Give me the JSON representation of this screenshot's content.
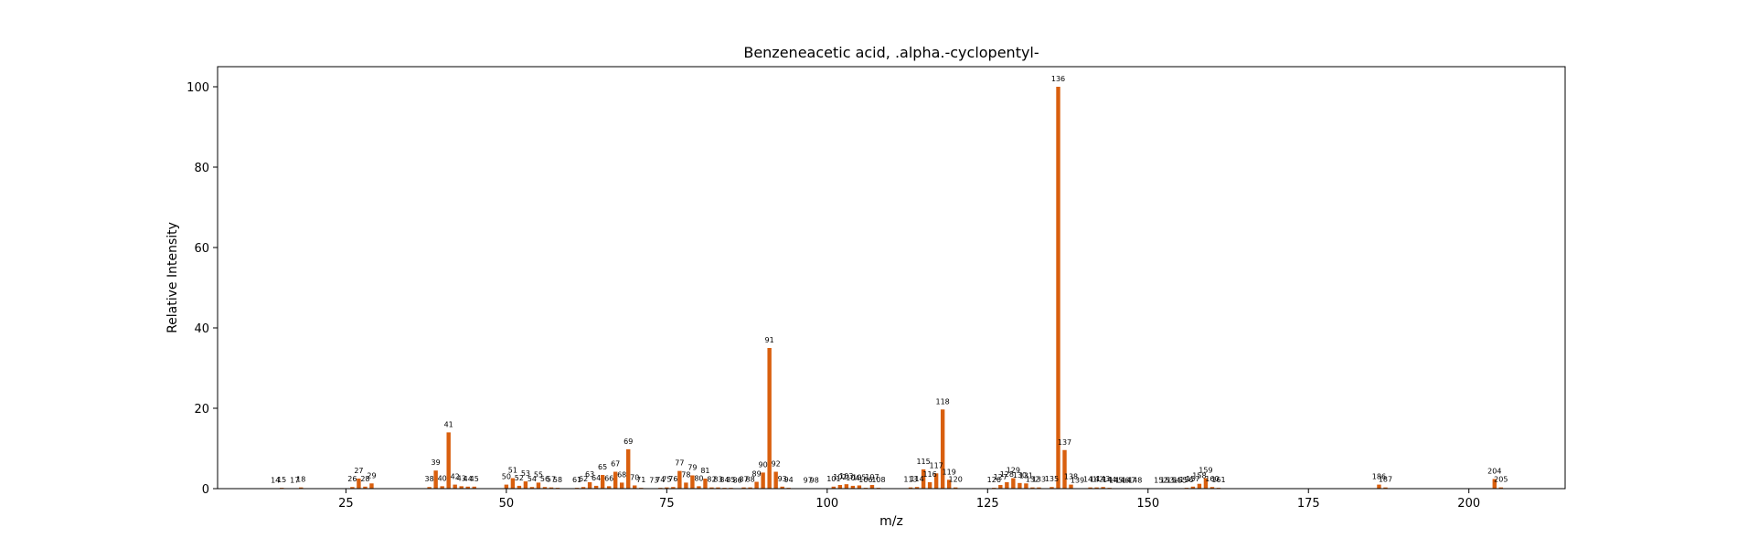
{
  "chart_data": {
    "type": "bar",
    "title": "Benzeneacetic acid, .alpha.-cyclopentyl-",
    "xlabel": "m/z",
    "ylabel": "Relative Intensity",
    "xlim": [
      5,
      215
    ],
    "ylim": [
      0,
      105
    ],
    "xticks": [
      25,
      50,
      75,
      100,
      125,
      150,
      175,
      200
    ],
    "yticks": [
      0,
      20,
      40,
      60,
      80,
      100
    ],
    "bar_color": "#d95f0e",
    "grid": false,
    "peaks": [
      {
        "mz": 14,
        "intensity": 0.1
      },
      {
        "mz": 15,
        "intensity": 0.2
      },
      {
        "mz": 17,
        "intensity": 0.1
      },
      {
        "mz": 18,
        "intensity": 0.3
      },
      {
        "mz": 26,
        "intensity": 0.4
      },
      {
        "mz": 27,
        "intensity": 2.5
      },
      {
        "mz": 28,
        "intensity": 0.5
      },
      {
        "mz": 29,
        "intensity": 1.3
      },
      {
        "mz": 38,
        "intensity": 0.4
      },
      {
        "mz": 39,
        "intensity": 4.5
      },
      {
        "mz": 40,
        "intensity": 0.6
      },
      {
        "mz": 41,
        "intensity": 14
      },
      {
        "mz": 42,
        "intensity": 1.0
      },
      {
        "mz": 43,
        "intensity": 0.6
      },
      {
        "mz": 44,
        "intensity": 0.5
      },
      {
        "mz": 45,
        "intensity": 0.5
      },
      {
        "mz": 50,
        "intensity": 1.0
      },
      {
        "mz": 51,
        "intensity": 2.6
      },
      {
        "mz": 52,
        "intensity": 0.7
      },
      {
        "mz": 53,
        "intensity": 1.8
      },
      {
        "mz": 54,
        "intensity": 0.4
      },
      {
        "mz": 55,
        "intensity": 1.5
      },
      {
        "mz": 56,
        "intensity": 0.4
      },
      {
        "mz": 57,
        "intensity": 0.3
      },
      {
        "mz": 58,
        "intensity": 0.2
      },
      {
        "mz": 61,
        "intensity": 0.2
      },
      {
        "mz": 62,
        "intensity": 0.4
      },
      {
        "mz": 63,
        "intensity": 1.6
      },
      {
        "mz": 64,
        "intensity": 0.7
      },
      {
        "mz": 65,
        "intensity": 3.4
      },
      {
        "mz": 66,
        "intensity": 0.6
      },
      {
        "mz": 67,
        "intensity": 4.2
      },
      {
        "mz": 68,
        "intensity": 1.5
      },
      {
        "mz": 69,
        "intensity": 9.8
      },
      {
        "mz": 70,
        "intensity": 0.8
      },
      {
        "mz": 71,
        "intensity": 0.2
      },
      {
        "mz": 73,
        "intensity": 0.1
      },
      {
        "mz": 74,
        "intensity": 0.2
      },
      {
        "mz": 75,
        "intensity": 0.3
      },
      {
        "mz": 76,
        "intensity": 0.4
      },
      {
        "mz": 77,
        "intensity": 4.4
      },
      {
        "mz": 78,
        "intensity": 1.5
      },
      {
        "mz": 79,
        "intensity": 3.3
      },
      {
        "mz": 80,
        "intensity": 0.6
      },
      {
        "mz": 81,
        "intensity": 2.5
      },
      {
        "mz": 82,
        "intensity": 0.3
      },
      {
        "mz": 83,
        "intensity": 0.3
      },
      {
        "mz": 84,
        "intensity": 0.2
      },
      {
        "mz": 85,
        "intensity": 0.2
      },
      {
        "mz": 86,
        "intensity": 0.1
      },
      {
        "mz": 87,
        "intensity": 0.3
      },
      {
        "mz": 88,
        "intensity": 0.3
      },
      {
        "mz": 89,
        "intensity": 1.7
      },
      {
        "mz": 90,
        "intensity": 4.0
      },
      {
        "mz": 91,
        "intensity": 35
      },
      {
        "mz": 92,
        "intensity": 4.2
      },
      {
        "mz": 93,
        "intensity": 0.5
      },
      {
        "mz": 94,
        "intensity": 0.2
      },
      {
        "mz": 97,
        "intensity": 0.1
      },
      {
        "mz": 98,
        "intensity": 0.1
      },
      {
        "mz": 101,
        "intensity": 0.5
      },
      {
        "mz": 102,
        "intensity": 0.9
      },
      {
        "mz": 103,
        "intensity": 1.1
      },
      {
        "mz": 104,
        "intensity": 0.7
      },
      {
        "mz": 105,
        "intensity": 0.8
      },
      {
        "mz": 106,
        "intensity": 0.2
      },
      {
        "mz": 107,
        "intensity": 0.9
      },
      {
        "mz": 108,
        "intensity": 0.2
      },
      {
        "mz": 113,
        "intensity": 0.3
      },
      {
        "mz": 114,
        "intensity": 0.4
      },
      {
        "mz": 115,
        "intensity": 4.8
      },
      {
        "mz": 116,
        "intensity": 1.6
      },
      {
        "mz": 117,
        "intensity": 3.8
      },
      {
        "mz": 118,
        "intensity": 19.7
      },
      {
        "mz": 119,
        "intensity": 2.2
      },
      {
        "mz": 120,
        "intensity": 0.3
      },
      {
        "mz": 126,
        "intensity": 0.2
      },
      {
        "mz": 127,
        "intensity": 0.9
      },
      {
        "mz": 128,
        "intensity": 1.6
      },
      {
        "mz": 129,
        "intensity": 2.6
      },
      {
        "mz": 130,
        "intensity": 1.4
      },
      {
        "mz": 131,
        "intensity": 1.3
      },
      {
        "mz": 132,
        "intensity": 0.3
      },
      {
        "mz": 133,
        "intensity": 0.3
      },
      {
        "mz": 135,
        "intensity": 0.4
      },
      {
        "mz": 136,
        "intensity": 100
      },
      {
        "mz": 137,
        "intensity": 9.6
      },
      {
        "mz": 138,
        "intensity": 1.0
      },
      {
        "mz": 139,
        "intensity": 0.1
      },
      {
        "mz": 141,
        "intensity": 0.3
      },
      {
        "mz": 142,
        "intensity": 0.3
      },
      {
        "mz": 143,
        "intensity": 0.4
      },
      {
        "mz": 144,
        "intensity": 0.2
      },
      {
        "mz": 145,
        "intensity": 0.1
      },
      {
        "mz": 146,
        "intensity": 0.1
      },
      {
        "mz": 147,
        "intensity": 0.1
      },
      {
        "mz": 148,
        "intensity": 0.1
      },
      {
        "mz": 152,
        "intensity": 0.1
      },
      {
        "mz": 153,
        "intensity": 0.1
      },
      {
        "mz": 154,
        "intensity": 0.1
      },
      {
        "mz": 155,
        "intensity": 0.1
      },
      {
        "mz": 156,
        "intensity": 0.2
      },
      {
        "mz": 157,
        "intensity": 0.5
      },
      {
        "mz": 158,
        "intensity": 1.2
      },
      {
        "mz": 159,
        "intensity": 2.6
      },
      {
        "mz": 160,
        "intensity": 0.4
      },
      {
        "mz": 161,
        "intensity": 0.2
      },
      {
        "mz": 186,
        "intensity": 1.0
      },
      {
        "mz": 187,
        "intensity": 0.3
      },
      {
        "mz": 204,
        "intensity": 2.4
      },
      {
        "mz": 205,
        "intensity": 0.3
      }
    ]
  }
}
